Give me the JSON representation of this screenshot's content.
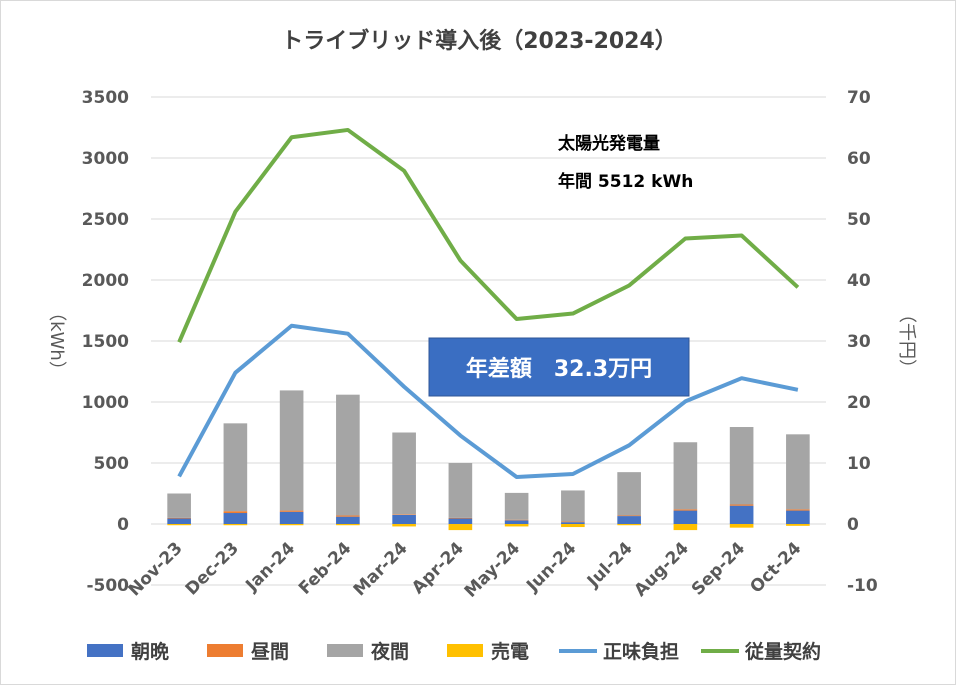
{
  "chart_data": {
    "type": "bar",
    "title": "トライブリッド導入後（2023-2024）",
    "categories": [
      "Nov-23",
      "Dec-23",
      "Jan-24",
      "Feb-24",
      "Mar-24",
      "Apr-24",
      "May-24",
      "Jun-24",
      "Jul-24",
      "Aug-24",
      "Sep-24",
      "Oct-24"
    ],
    "ylabel_left": "（kWh）",
    "ylabel_right": "（千円）",
    "ylim_left": [
      -500,
      3500
    ],
    "ylim_right": [
      -10,
      70
    ],
    "yticks_left": [
      "-500",
      "0",
      "500",
      "1000",
      "1500",
      "2000",
      "2500",
      "3000",
      "3500"
    ],
    "yticks_right": [
      "-10",
      "0",
      "10",
      "20",
      "30",
      "40",
      "50",
      "60",
      "70"
    ],
    "grid": true,
    "legend_position": "bottom",
    "bar_series": [
      {
        "name": "朝晩",
        "color": "#4472c4",
        "values": [
          45,
          90,
          100,
          60,
          75,
          45,
          30,
          15,
          65,
          110,
          150,
          110
        ]
      },
      {
        "name": "昼間",
        "color": "#ed7d31",
        "values": [
          5,
          15,
          10,
          10,
          5,
          5,
          5,
          5,
          5,
          10,
          10,
          10
        ]
      },
      {
        "name": "夜間",
        "color": "#a5a5a5",
        "values": [
          200,
          720,
          985,
          990,
          670,
          450,
          220,
          255,
          355,
          550,
          635,
          615
        ]
      },
      {
        "name": "売電",
        "color": "#ffc000",
        "values": [
          -10,
          -10,
          -10,
          -10,
          -20,
          -50,
          -20,
          -25,
          -10,
          -50,
          -30,
          -15
        ]
      }
    ],
    "line_series": [
      {
        "name": "正味負担",
        "color": "#5b9bd5",
        "axis": "right",
        "values": [
          7.8,
          24.8,
          32.5,
          31.2,
          22.5,
          14.5,
          7.7,
          8.2,
          12.9,
          20.1,
          23.9,
          22.0
        ]
      },
      {
        "name": "従量契約",
        "color": "#70ad47",
        "axis": "right",
        "values": [
          29.8,
          51.2,
          63.4,
          64.6,
          57.9,
          43.2,
          33.6,
          34.5,
          39.1,
          46.8,
          47.3,
          38.8
        ]
      }
    ],
    "annotations": {
      "solar_title": "太陽光発電量",
      "solar_value": "年間 5512 kWh",
      "callout": "年差額　32.3万円"
    }
  }
}
